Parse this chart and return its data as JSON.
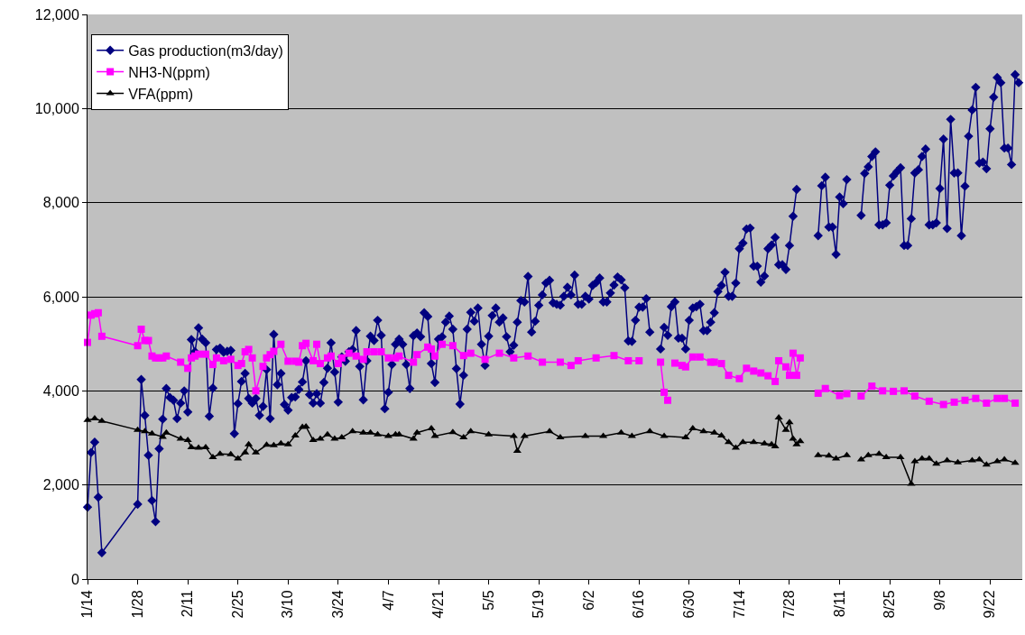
{
  "chart_data": {
    "type": "line",
    "xlim": [
      "--01-14",
      "--10-01"
    ],
    "xticks": [
      {
        "value": "--01-14",
        "label": "1/14"
      },
      {
        "value": "--01-28",
        "label": "1/28"
      },
      {
        "value": "--02-11",
        "label": "2/11"
      },
      {
        "value": "--02-25",
        "label": "2/25"
      },
      {
        "value": "--03-10",
        "label": "3/10"
      },
      {
        "value": "--03-24",
        "label": "3/24"
      },
      {
        "value": "--04-07",
        "label": "4/7"
      },
      {
        "value": "--04-21",
        "label": "4/21"
      },
      {
        "value": "--05-05",
        "label": "5/5"
      },
      {
        "value": "--05-19",
        "label": "5/19"
      },
      {
        "value": "--06-02",
        "label": "6/2"
      },
      {
        "value": "--06-16",
        "label": "6/16"
      },
      {
        "value": "--06-30",
        "label": "6/30"
      },
      {
        "value": "--07-14",
        "label": "7/14"
      },
      {
        "value": "--07-28",
        "label": "7/28"
      },
      {
        "value": "--08-11",
        "label": "8/11"
      },
      {
        "value": "--08-25",
        "label": "8/25"
      },
      {
        "value": "--09-08",
        "label": "9/8"
      },
      {
        "value": "--09-22",
        "label": "9/22"
      }
    ],
    "ylim": [
      0,
      12000
    ],
    "yticks": [
      0,
      {
        "value": 2000,
        "label": "2,000"
      },
      {
        "value": 4000,
        "label": "4,000"
      },
      {
        "value": 6000,
        "label": "6,000"
      },
      {
        "value": 8000,
        "label": "8,000"
      },
      {
        "value": 10000,
        "label": "10,000"
      },
      {
        "value": 12000,
        "label": "12,000"
      }
    ],
    "grid": "y",
    "legend": "top left",
    "series": [
      {
        "name": "Gas production(m3/day)",
        "color": "#000080",
        "marker": "diamond",
        "x": [
          "--01-14",
          "--01-15",
          "--01-16",
          "--01-17",
          "--01-18",
          "--01-28",
          "--01-29",
          "--01-30",
          "--01-31",
          "--02-01",
          "--02-02",
          "--02-03",
          "--02-04",
          "--02-05",
          "--02-06",
          "--02-07",
          "--02-08",
          "--02-09",
          "--02-10",
          "--02-11",
          "--02-12",
          "--02-13",
          "--02-14",
          "--02-15",
          "--02-16",
          "--02-17",
          "--02-18",
          "--02-19",
          "--02-20",
          "--02-21",
          "--02-22",
          "--02-23",
          "--02-24",
          "--02-25",
          "--02-26",
          "--02-27",
          "--02-28",
          "--02-29",
          "--03-01",
          "--03-02",
          "--03-03",
          "--03-04",
          "--03-05",
          "--03-06",
          "--03-07",
          "--03-08",
          "--03-09",
          "--03-10",
          "--03-11",
          "--03-12",
          "--03-13",
          "--03-14",
          "--03-15",
          "--03-16",
          "--03-17",
          "--03-18",
          "--03-19",
          "--03-20",
          "--03-21",
          "--03-22",
          "--03-23",
          "--03-24",
          "--03-25",
          "--03-26",
          "--03-27",
          "--03-28",
          "--03-29",
          "--03-30",
          "--03-31",
          "--04-01",
          "--04-02",
          "--04-03",
          "--04-04",
          "--04-05",
          "--04-06",
          "--04-07",
          "--04-08",
          "--04-09",
          "--04-10",
          "--04-11",
          "--04-12",
          "--04-13",
          "--04-14",
          "--04-15",
          "--04-16",
          "--04-17",
          "--04-18",
          "--04-19",
          "--04-20",
          "--04-21",
          "--04-22",
          "--04-23",
          "--04-24",
          "--04-25",
          "--04-26",
          "--04-27",
          "--04-28",
          "--04-29",
          "--04-30",
          "--05-01",
          "--05-02",
          "--05-03",
          "--05-04",
          "--05-05",
          "--05-06",
          "--05-07",
          "--05-08",
          "--05-09",
          "--05-10",
          "--05-11",
          "--05-12",
          "--05-13",
          "--05-14",
          "--05-15",
          "--05-16",
          "--05-17",
          "--05-18",
          "--05-19",
          "--05-20",
          "--05-21",
          "--05-22",
          "--05-23",
          "--05-24",
          "--05-25",
          "--05-26",
          "--05-27",
          "--05-28",
          "--05-29",
          "--05-30",
          "--05-31",
          "--06-01",
          "--06-02",
          "--06-03",
          "--06-04",
          "--06-05",
          "--06-06",
          "--06-07",
          "--06-08",
          "--06-09",
          "--06-10",
          "--06-11",
          "--06-12",
          "--06-13",
          "--06-14",
          "--06-15",
          "--06-16",
          "--06-17",
          "--06-18",
          "--06-19",
          "--06-21",
          "--06-22",
          "--06-23",
          "--06-24",
          "--06-25",
          "--06-26",
          "--06-27",
          "--06-28",
          "--06-29",
          "--06-30",
          "--07-01",
          "--07-02",
          "--07-03",
          "--07-04",
          "--07-05",
          "--07-06",
          "--07-07",
          "--07-08",
          "--07-09",
          "--07-10",
          "--07-11",
          "--07-12",
          "--07-13",
          "--07-14",
          "--07-15",
          "--07-16",
          "--07-17",
          "--07-18",
          "--07-19",
          "--07-20",
          "--07-21",
          "--07-22",
          "--07-23",
          "--07-24",
          "--07-25",
          "--07-26",
          "--07-27",
          "--07-28",
          "--07-29",
          "--07-30",
          "--08-02",
          "--08-05",
          "--08-06",
          "--08-07",
          "--08-08",
          "--08-09",
          "--08-10",
          "--08-11",
          "--08-12",
          "--08-13",
          "--08-15",
          "--08-17",
          "--08-18",
          "--08-19",
          "--08-20",
          "--08-21",
          "--08-22",
          "--08-23",
          "--08-24",
          "--08-25",
          "--08-26",
          "--08-27",
          "--08-28",
          "--08-29",
          "--08-30",
          "--08-31",
          "--09-01",
          "--09-02",
          "--09-03",
          "--09-04",
          "--09-05",
          "--09-06",
          "--09-07",
          "--09-08",
          "--09-09",
          "--09-10",
          "--09-11",
          "--09-12",
          "--09-13",
          "--09-14",
          "--09-15",
          "--09-16",
          "--09-17",
          "--09-18",
          "--09-19",
          "--09-20",
          "--09-21",
          "--09-22",
          "--09-23",
          "--09-24",
          "--09-25",
          "--09-26",
          "--09-27",
          "--09-28",
          "--09-29",
          "--09-30"
        ],
        "values": [
          1530,
          2690,
          2910,
          1740,
          560,
          1590,
          4240,
          3480,
          2630,
          1670,
          1220,
          2770,
          3400,
          4050,
          3860,
          3800,
          3410,
          3740,
          4000,
          3550,
          5090,
          4830,
          5340,
          5100,
          5020,
          3460,
          4060,
          4880,
          4910,
          4820,
          4840,
          4860,
          3090,
          3730,
          4200,
          4370,
          3840,
          3740,
          3840,
          3480,
          3670,
          4450,
          3410,
          5200,
          4130,
          4370,
          3710,
          3590,
          3860,
          3870,
          4030,
          4190,
          4640,
          3920,
          3740,
          3940,
          3740,
          4180,
          4480,
          5020,
          4400,
          3760,
          4720,
          4630,
          4830,
          4880,
          5280,
          4520,
          3810,
          4640,
          5160,
          5070,
          5500,
          5180,
          3620,
          3970,
          4560,
          4990,
          5100,
          4990,
          4560,
          4050,
          5170,
          5230,
          5150,
          5660,
          5580,
          4580,
          4180,
          5100,
          5150,
          5460,
          5590,
          5310,
          4470,
          3720,
          4330,
          5310,
          5670,
          5480,
          5760,
          4990,
          4540,
          5160,
          5600,
          5760,
          5460,
          5550,
          5150,
          4830,
          4970,
          5460,
          5920,
          5890,
          6430,
          5250,
          5480,
          5820,
          6040,
          6290,
          6350,
          5870,
          5840,
          5820,
          6010,
          6200,
          6040,
          6460,
          5840,
          5840,
          6010,
          5950,
          6240,
          6300,
          6400,
          5890,
          5890,
          6080,
          6250,
          6420,
          6360,
          6190,
          5060,
          5050,
          5500,
          5780,
          5780,
          5960,
          5250,
          null,
          4890,
          5350,
          5180,
          5790,
          5890,
          5120,
          5120,
          4890,
          5500,
          5760,
          5790,
          5840,
          5280,
          5280,
          5460,
          5660,
          6110,
          6240,
          6520,
          6010,
          6010,
          6290,
          7020,
          7140,
          7440,
          7460,
          6650,
          6650,
          6310,
          6440,
          7020,
          7100,
          7260,
          6680,
          6680,
          6580,
          7090,
          7710,
          8280,
          null,
          7300,
          8360,
          8540,
          7480,
          7480,
          6900,
          8120,
          7980,
          8490,
          null,
          7730,
          8620,
          8760,
          8980,
          9080,
          7530,
          7530,
          7570,
          8370,
          8570,
          8660,
          8740,
          7090,
          7090,
          7660,
          8630,
          8700,
          8980,
          9140,
          7530,
          7530,
          7570,
          8300,
          9350,
          7450,
          9770,
          8630,
          8630,
          7300,
          8350,
          9410,
          9970,
          10450,
          8840,
          8860,
          8720,
          9570,
          10240,
          10660,
          10550,
          9160,
          9160,
          8810,
          10720,
          10550
        ]
      },
      {
        "name": "NH3-N(ppm)",
        "color": "#ff00ff",
        "marker": "square",
        "x": [
          "--01-14",
          "--01-15",
          "--01-16",
          "--01-17",
          "--01-18",
          "--01-28",
          "--01-29",
          "--01-30",
          "--01-31",
          "--02-01",
          "--02-02",
          "--02-03",
          "--02-04",
          "--02-05",
          "--02-09",
          "--02-11",
          "--02-12",
          "--02-13",
          "--02-14",
          "--02-16",
          "--02-18",
          "--02-19",
          "--02-21",
          "--02-23",
          "--02-25",
          "--02-26",
          "--02-27",
          "--02-28",
          "--02-29",
          "--03-01",
          "--03-03",
          "--03-04",
          "--03-05",
          "--03-06",
          "--03-08",
          "--03-10",
          "--03-12",
          "--03-13",
          "--03-14",
          "--03-15",
          "--03-17",
          "--03-18",
          "--03-19",
          "--03-21",
          "--03-22",
          "--03-24",
          "--03-25",
          "--03-27",
          "--03-29",
          "--03-31",
          "--04-01",
          "--04-03",
          "--04-05",
          "--04-07",
          "--04-09",
          "--04-10",
          "--04-14",
          "--04-15",
          "--04-18",
          "--04-19",
          "--04-20",
          "--04-22",
          "--04-25",
          "--04-28",
          "--04-30",
          "--05-04",
          "--05-08",
          "--05-12",
          "--05-16",
          "--05-20",
          "--05-25",
          "--05-28",
          "--05-30",
          "--06-04",
          "--06-09",
          "--06-13",
          "--06-16",
          "--06-19",
          "--06-22",
          "--06-23",
          "--06-24",
          "--06-25",
          "--06-26",
          "--06-28",
          "--06-29",
          "--07-01",
          "--07-03",
          "--07-06",
          "--07-07",
          "--07-09",
          "--07-11",
          "--07-14",
          "--07-16",
          "--07-18",
          "--07-20",
          "--07-22",
          "--07-24",
          "--07-25",
          "--07-27",
          "--07-28",
          "--07-29",
          "--07-30",
          "--07-31",
          "--08-02",
          "--08-05",
          "--08-07",
          "--08-11",
          "--08-13",
          "--08-15",
          "--08-17",
          "--08-20",
          "--08-23",
          "--08-26",
          "--08-29",
          "--09-01",
          "--09-05",
          "--09-09",
          "--09-12",
          "--09-15",
          "--09-18",
          "--09-21",
          "--09-24",
          "--09-26",
          "--09-29"
        ],
        "values": [
          5030,
          5610,
          5640,
          5660,
          5160,
          4960,
          5310,
          5070,
          5070,
          4740,
          4700,
          4700,
          4700,
          4740,
          4610,
          4480,
          4700,
          4740,
          4780,
          4780,
          4560,
          4700,
          4640,
          4670,
          4540,
          4580,
          4830,
          4880,
          4700,
          4000,
          4520,
          4700,
          4770,
          4840,
          4990,
          4630,
          4630,
          4610,
          4960,
          5010,
          4640,
          4990,
          4580,
          4700,
          4740,
          4580,
          4700,
          4800,
          4740,
          4670,
          4830,
          4830,
          4830,
          4700,
          4700,
          4740,
          4610,
          4770,
          4930,
          4890,
          4740,
          4990,
          4960,
          4750,
          4800,
          4670,
          4800,
          4700,
          4740,
          4610,
          4610,
          4540,
          4640,
          4700,
          4750,
          4640,
          4640,
          null,
          4610,
          3970,
          3800,
          null,
          4590,
          4540,
          4510,
          4720,
          4720,
          4610,
          4610,
          4580,
          4330,
          4260,
          4480,
          4420,
          4380,
          4320,
          4200,
          4640,
          4510,
          4330,
          4800,
          4330,
          4700,
          null,
          3950,
          4050,
          3900,
          3940,
          null,
          3890,
          4100,
          4000,
          3990,
          4000,
          3890,
          3780,
          3710,
          3760,
          3800,
          3840,
          3740,
          3840,
          3840,
          3740
        ]
      },
      {
        "name": "VFA(ppm)",
        "color": "#000000",
        "marker": "triangle",
        "x": [
          "--01-14",
          "--01-16",
          "--01-18",
          "--01-28",
          "--01-30",
          "--02-01",
          "--02-04",
          "--02-05",
          "--02-09",
          "--02-11",
          "--02-12",
          "--02-14",
          "--02-16",
          "--02-18",
          "--02-20",
          "--02-23",
          "--02-25",
          "--02-27",
          "--02-28",
          "--03-01",
          "--03-04",
          "--03-06",
          "--03-08",
          "--03-10",
          "--03-12",
          "--03-14",
          "--03-15",
          "--03-17",
          "--03-19",
          "--03-21",
          "--03-23",
          "--03-25",
          "--03-28",
          "--03-31",
          "--04-02",
          "--04-04",
          "--04-07",
          "--04-09",
          "--04-10",
          "--04-14",
          "--04-15",
          "--04-19",
          "--04-20",
          "--04-25",
          "--04-28",
          "--04-30",
          "--05-05",
          "--05-12",
          "--05-13",
          "--05-15",
          "--05-22",
          "--05-25",
          "--06-01",
          "--06-06",
          "--06-11",
          "--06-14",
          "--06-19",
          "--06-23",
          "--06-29",
          "--07-01",
          "--07-04",
          "--07-07",
          "--07-09",
          "--07-11",
          "--07-13",
          "--07-15",
          "--07-18",
          "--07-21",
          "--07-23",
          "--07-24",
          "--07-25",
          "--07-27",
          "--07-28",
          "--07-29",
          "--07-30",
          "--07-31",
          "--08-02",
          "--08-05",
          "--08-08",
          "--08-10",
          "--08-13",
          "--08-15",
          "--08-17",
          "--08-19",
          "--08-22",
          "--08-24",
          "--08-28",
          "--08-31",
          "--09-01",
          "--09-03",
          "--09-05",
          "--09-07",
          "--09-10",
          "--09-13",
          "--09-17",
          "--09-19",
          "--09-21",
          "--09-24",
          "--09-26",
          "--09-29"
        ],
        "values": [
          3380,
          3410,
          3360,
          3170,
          3140,
          3090,
          3020,
          3110,
          2980,
          2950,
          2800,
          2790,
          2800,
          2590,
          2660,
          2650,
          2560,
          2690,
          2860,
          2690,
          2850,
          2840,
          2880,
          2860,
          3050,
          3230,
          3240,
          2950,
          2980,
          3070,
          2980,
          3010,
          3140,
          3110,
          3110,
          3070,
          3040,
          3070,
          3070,
          2980,
          3110,
          3200,
          3040,
          3120,
          3010,
          3140,
          3070,
          3040,
          2720,
          3040,
          3140,
          3010,
          3040,
          3040,
          3110,
          3040,
          3140,
          3040,
          3010,
          3200,
          3140,
          3110,
          3050,
          2910,
          2790,
          2910,
          2910,
          2880,
          2860,
          2820,
          3430,
          3170,
          3330,
          2980,
          2860,
          2930,
          null,
          2630,
          2620,
          2560,
          2630,
          null,
          2540,
          2630,
          2660,
          2590,
          2590,
          2020,
          2500,
          2560,
          2560,
          2450,
          2520,
          2480,
          2520,
          2540,
          2430,
          2500,
          2540,
          2470
        ]
      }
    ]
  }
}
